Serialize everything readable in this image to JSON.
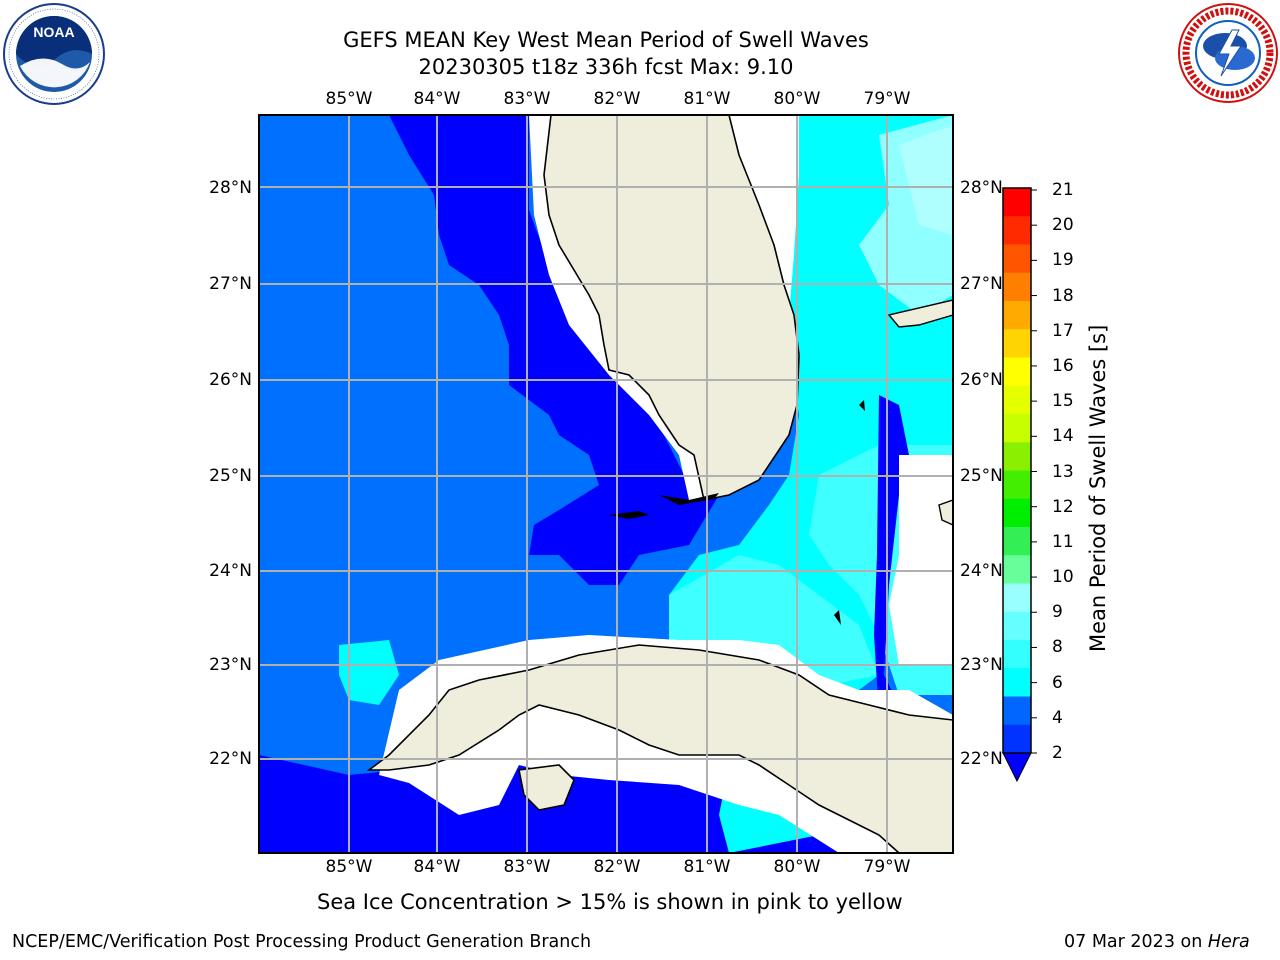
{
  "header": {
    "title_line1": "GEFS MEAN Key West Mean Period of Swell Waves",
    "title_line2": "20230305 t18z 336h fcst   Max: 9.10"
  },
  "logos": {
    "noaa_text": "NOAA",
    "noaa_ring_text": "NATIONAL OCEANIC AND ATMOSPHERIC ADMINISTRATION · U.S. DEPARTMENT OF COMMERCE",
    "nws_ring_text": "NATIONAL WEATHER SERVICE"
  },
  "map": {
    "lon_labels": [
      "85°W",
      "84°W",
      "83°W",
      "82°W",
      "81°W",
      "80°W",
      "79°W"
    ],
    "lat_labels": [
      "28°N",
      "27°N",
      "26°N",
      "25°N",
      "24°N",
      "23°N",
      "22°N"
    ],
    "note": "Sea Ice Concentration > 15% is shown in pink to yellow",
    "colors": {
      "level_2_4": "#0000ff",
      "level_2_4_alt": "#0070ff",
      "level_4_6": "#00ffff",
      "level_6_8": "#40ffff",
      "level_8_9": "#90ffff",
      "land": "#efeedd",
      "coast": "#000000",
      "grid": "#b0b0b0",
      "missing": "#ffffff"
    }
  },
  "colorbar": {
    "title": "Mean Period of Swell Waves [s]",
    "labels": [
      "21",
      "20",
      "19",
      "18",
      "17",
      "16",
      "15",
      "14",
      "13",
      "12",
      "11",
      "10",
      "9",
      "8",
      "6",
      "4",
      "2"
    ],
    "colors": [
      "#ff0000",
      "#ff2a00",
      "#ff5500",
      "#ff7f00",
      "#ffaa00",
      "#ffd400",
      "#ffff00",
      "#e5ff00",
      "#c8ff00",
      "#88f000",
      "#44ee00",
      "#00ee00",
      "#33ee55",
      "#66ff99",
      "#99ffff",
      "#66ffff",
      "#33ffff",
      "#00ffff",
      "#0066ff",
      "#0033ff"
    ]
  },
  "footer": {
    "left": "NCEP/EMC/Verification Post Processing Product Generation Branch",
    "right_date": "07 Mar 2023 on ",
    "right_host": "Hera"
  }
}
